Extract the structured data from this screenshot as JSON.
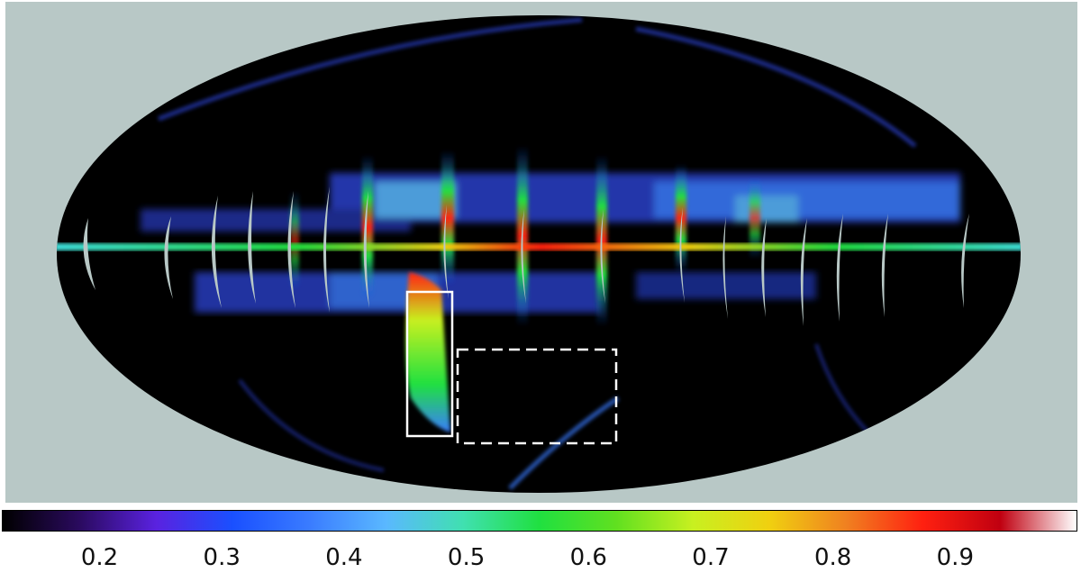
{
  "colorbar": {
    "min": 0.12,
    "max": 1.0,
    "tick_labels": [
      "0.2",
      "0.3",
      "0.4",
      "0.5",
      "0.6",
      "0.7",
      "0.8",
      "0.9"
    ],
    "tick_values": [
      0.2,
      0.3,
      0.4,
      0.5,
      0.6,
      0.7,
      0.8,
      0.9
    ],
    "colors": [
      "#000000",
      "#2a0a5e",
      "#5a22e0",
      "#1a50ff",
      "#3a7cff",
      "#5ab8ff",
      "#40e0b0",
      "#20e040",
      "#60e020",
      "#c8f020",
      "#f0d010",
      "#f08020",
      "#ff2010",
      "#c00010",
      "#ffffff"
    ]
  },
  "map": {
    "background_color": "#b8c8c6",
    "projection": "mollweide",
    "regions": [
      "solid-box",
      "dashed-box"
    ]
  }
}
